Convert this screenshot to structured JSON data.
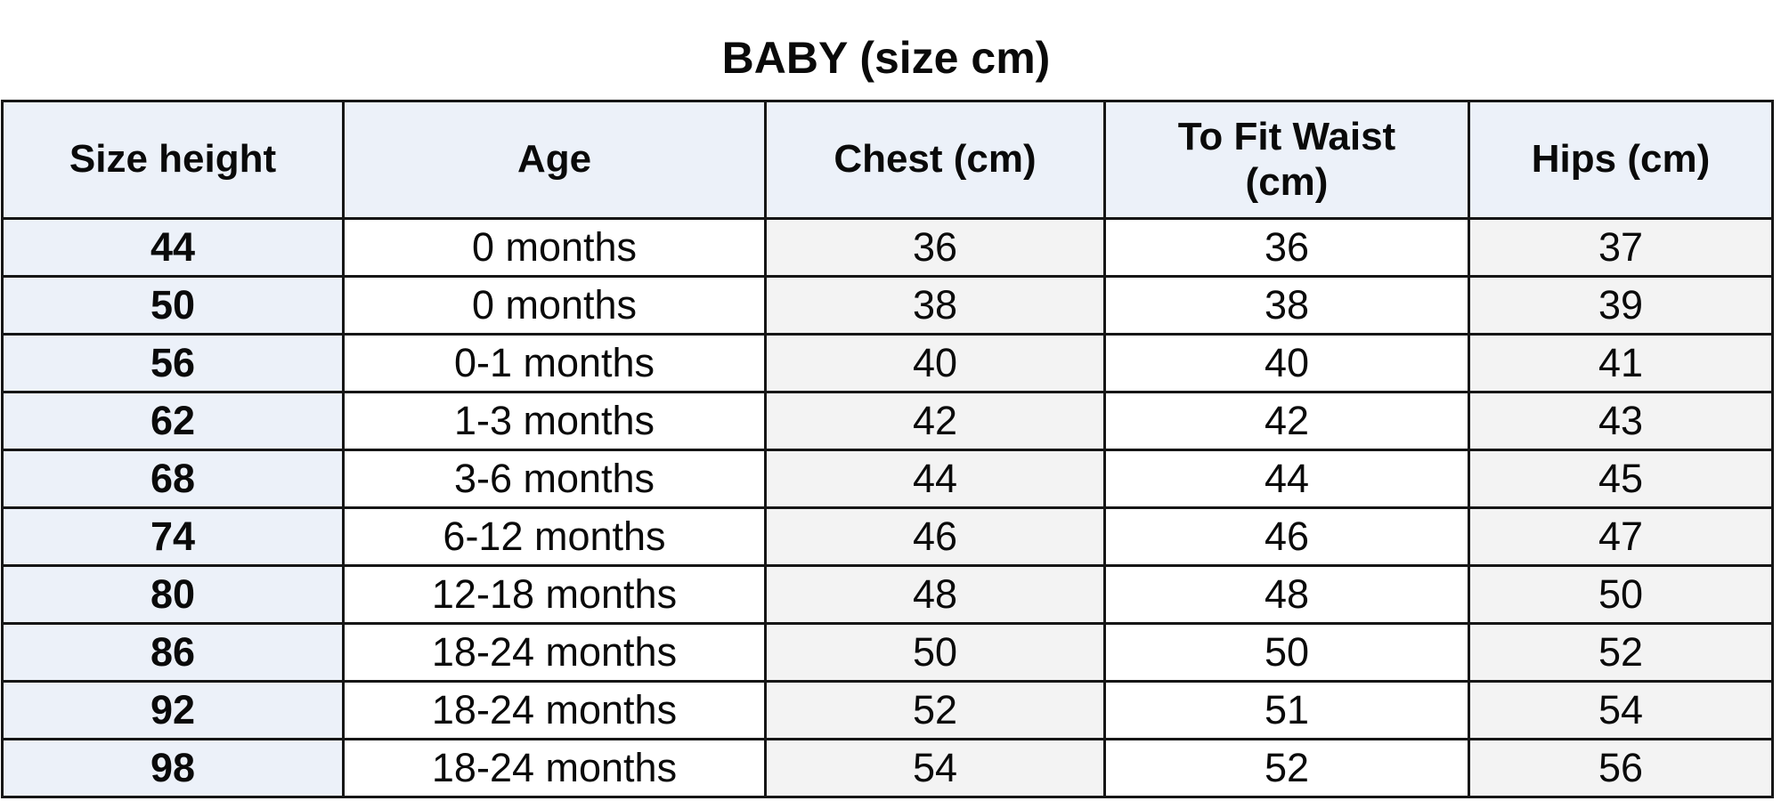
{
  "chart_data": {
    "type": "table",
    "title": "BABY (size cm)",
    "columns": [
      "Size height",
      "Age",
      "Chest (cm)",
      "To Fit Waist (cm)",
      "Hips (cm)"
    ],
    "rows": [
      [
        "44",
        "0 months",
        "36",
        "36",
        "37"
      ],
      [
        "50",
        "0 months",
        "38",
        "38",
        "39"
      ],
      [
        "56",
        "0-1 months",
        "40",
        "40",
        "41"
      ],
      [
        "62",
        "1-3 months",
        "42",
        "42",
        "43"
      ],
      [
        "68",
        "3-6 months",
        "44",
        "44",
        "45"
      ],
      [
        "74",
        "6-12 months",
        "46",
        "46",
        "47"
      ],
      [
        "80",
        "12-18 months",
        "48",
        "48",
        "50"
      ],
      [
        "86",
        "18-24 months",
        "50",
        "50",
        "52"
      ],
      [
        "92",
        "18-24 months",
        "52",
        "51",
        "54"
      ],
      [
        "98",
        "18-24 months",
        "54",
        "52",
        "56"
      ]
    ]
  },
  "colors": {
    "background": "#ffffff",
    "header_fill": "#ecf1f9",
    "size_column_fill": "#ecf1f9",
    "gray_column_fill": "#f3f3f3",
    "white_column_fill": "#ffffff",
    "border": "#161616",
    "text": "#0a0a0a"
  }
}
